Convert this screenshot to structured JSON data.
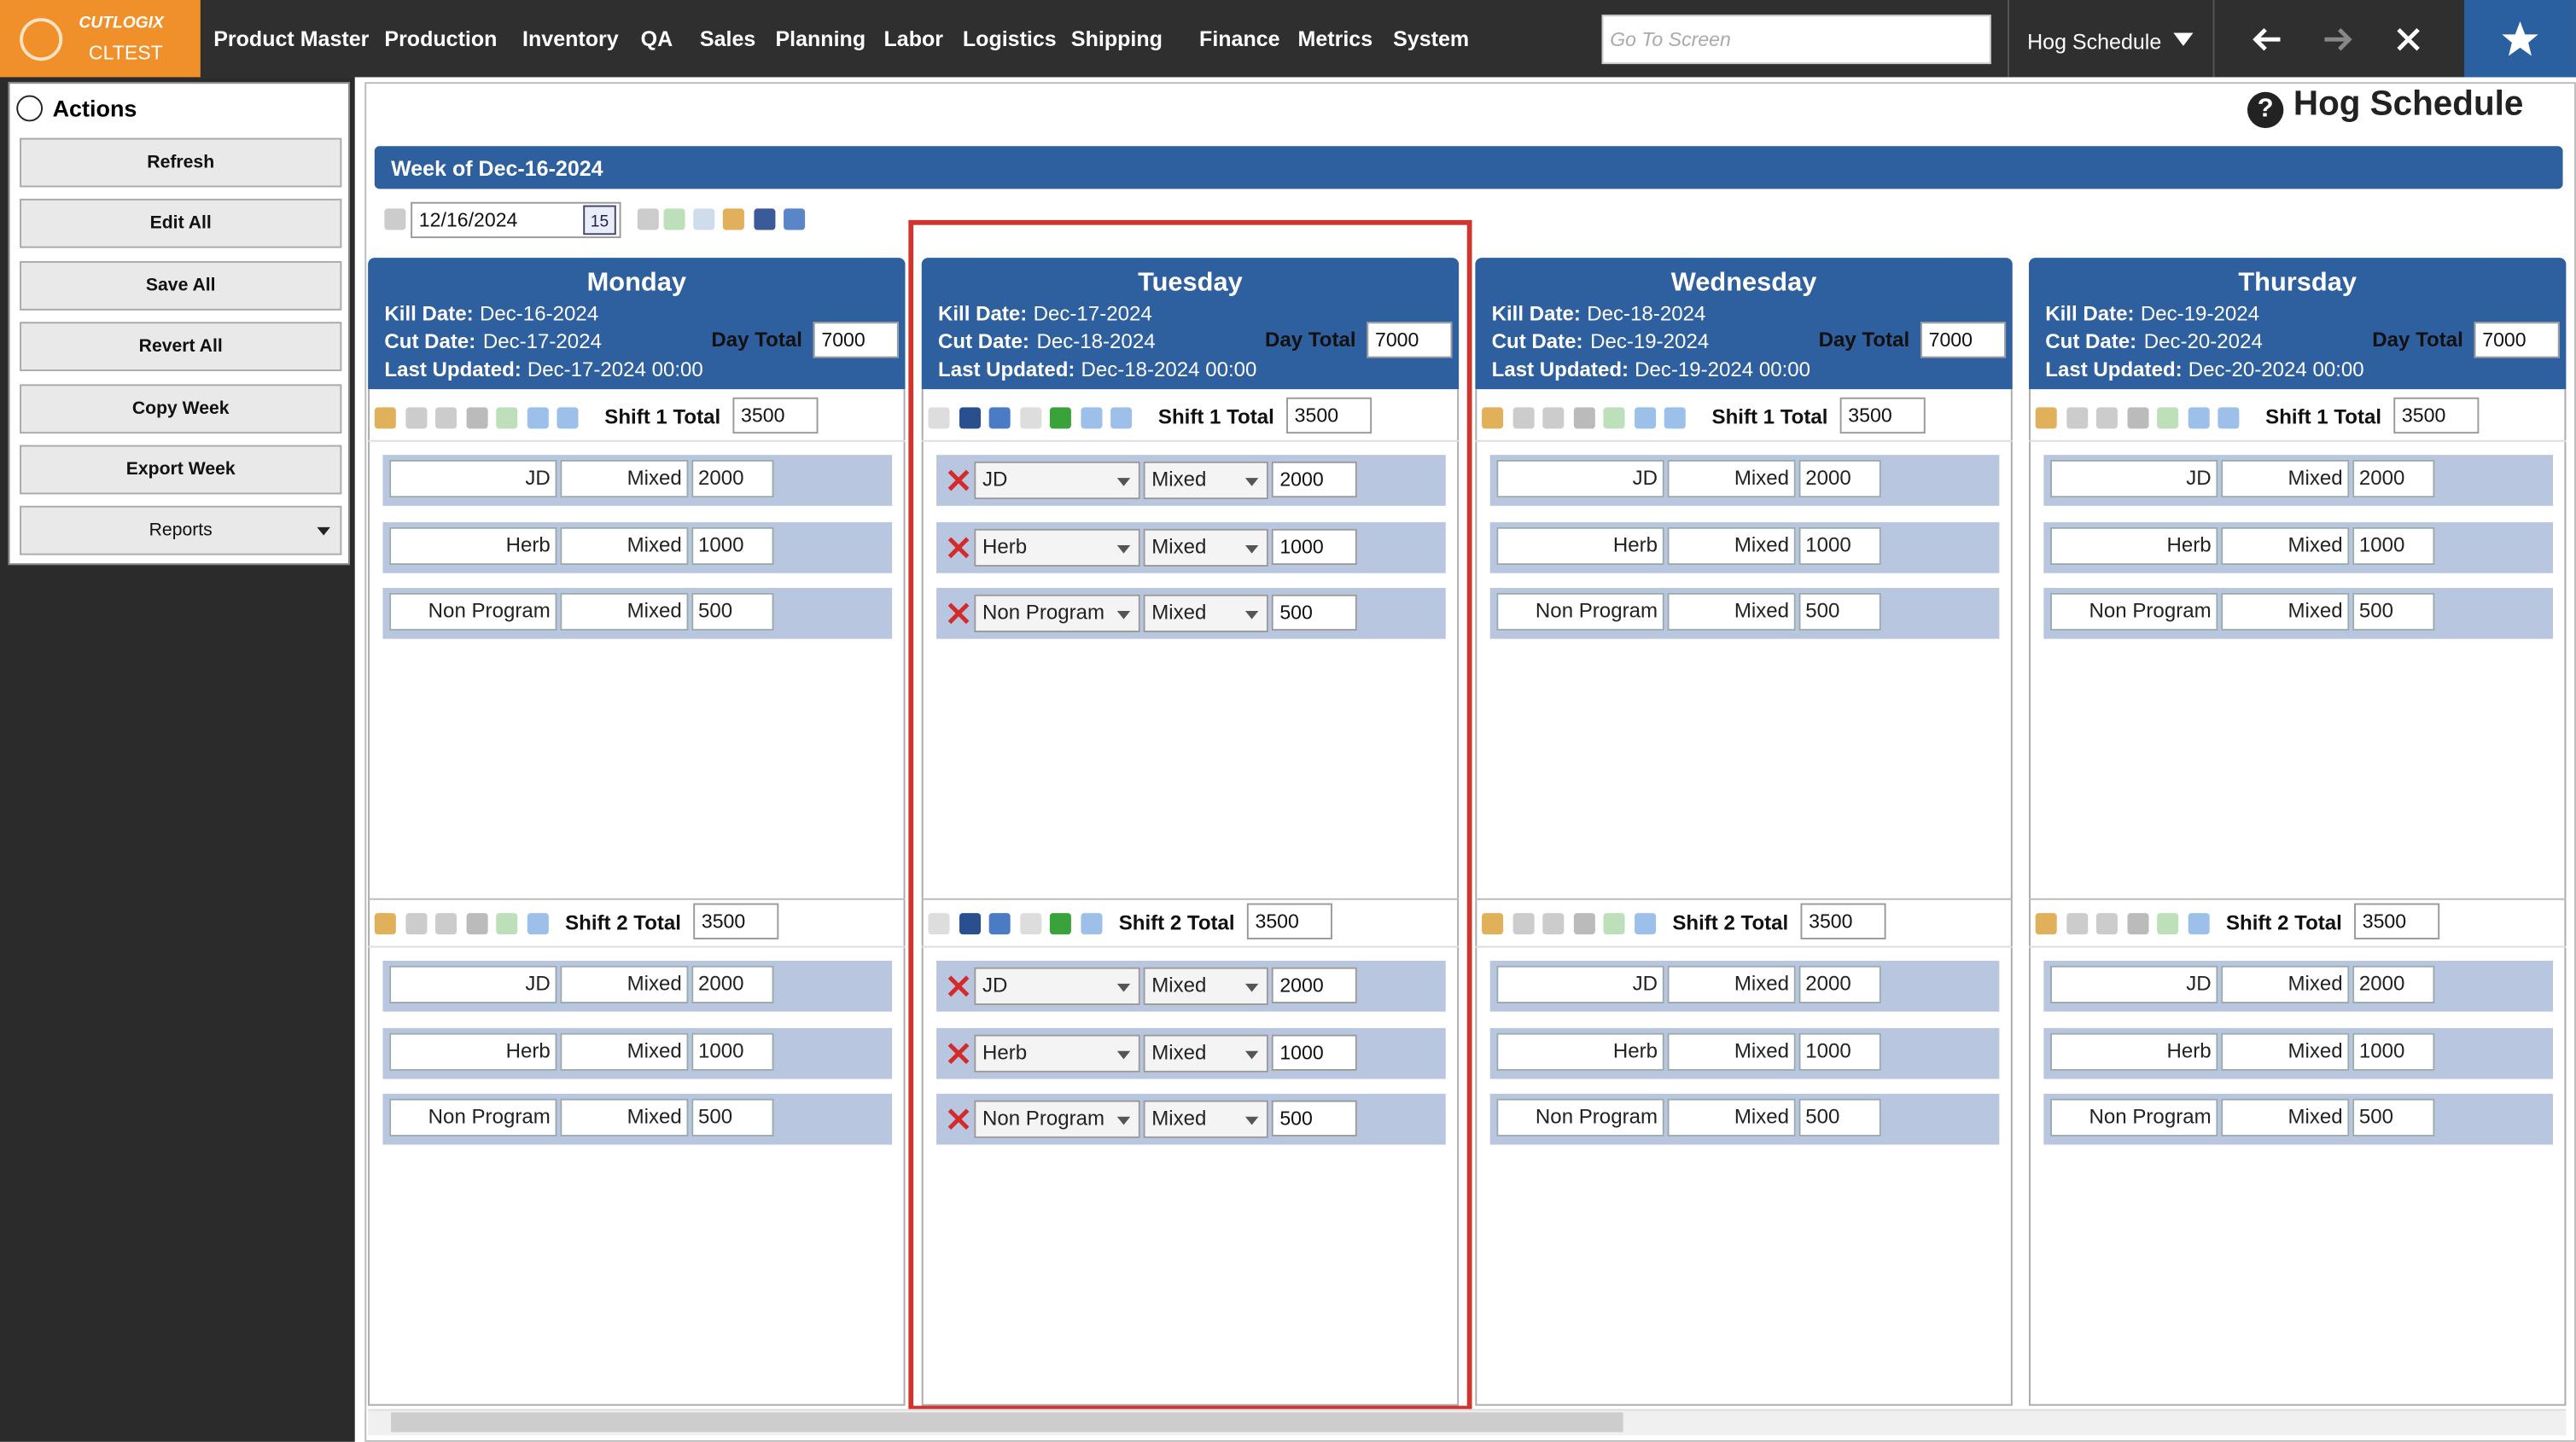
{
  "nav": {
    "logo_brand": "CUTLOGIX",
    "logo_env": "CLTEST",
    "menu": [
      "Product Master",
      "Production",
      "Inventory",
      "QA",
      "Sales",
      "Planning",
      "Labor",
      "Logistics",
      "Shipping",
      "Finance",
      "Metrics",
      "System"
    ],
    "search_placeholder": "Go To Screen",
    "screen": "Hog Schedule"
  },
  "sidebar": {
    "title": "Actions",
    "buttons": [
      "Refresh",
      "Edit All",
      "Save All",
      "Revert All",
      "Copy Week",
      "Export Week"
    ],
    "reports": "Reports"
  },
  "page": {
    "help": "?",
    "title": "Hog Schedule",
    "week": "Week of Dec-16-2024",
    "date": "12/16/2024",
    "calendar_icon": "15"
  },
  "labels": {
    "kill_date": "Kill Date:",
    "cut_date": "Cut Date:",
    "last_updated": "Last Updated:",
    "day_total": "Day Total"
  },
  "days": [
    {
      "name": "Monday",
      "kill_date": "Dec-16-2024",
      "cut_date": "Dec-17-2024",
      "last_updated": "Dec-17-2024 00:00",
      "day_total": 7000,
      "shifts": [
        {
          "label": "Shift 1 Total",
          "total": 3500,
          "rows": [
            [
              "JD",
              "Mixed",
              2000
            ],
            [
              "Herb",
              "Mixed",
              1000
            ],
            [
              "Non Program",
              "Mixed",
              500
            ]
          ]
        },
        {
          "label": "Shift 2 Total",
          "total": 3500,
          "rows": [
            [
              "JD",
              "Mixed",
              2000
            ],
            [
              "Herb",
              "Mixed",
              1000
            ],
            [
              "Non Program",
              "Mixed",
              500
            ]
          ]
        }
      ]
    },
    {
      "name": "Tuesday",
      "kill_date": "Dec-17-2024",
      "cut_date": "Dec-18-2024",
      "last_updated": "Dec-18-2024 00:00",
      "day_total": 7000,
      "shifts": [
        {
          "label": "Shift 1 Total",
          "total": 3500,
          "rows": [
            [
              "JD",
              "Mixed",
              2000
            ],
            [
              "Herb",
              "Mixed",
              1000
            ],
            [
              "Non Program",
              "Mixed",
              500
            ]
          ]
        },
        {
          "label": "Shift 2 Total",
          "total": 3500,
          "rows": [
            [
              "JD",
              "Mixed",
              2000
            ],
            [
              "Herb",
              "Mixed",
              1000
            ],
            [
              "Non Program",
              "Mixed",
              500
            ]
          ]
        }
      ]
    },
    {
      "name": "Wednesday",
      "kill_date": "Dec-18-2024",
      "cut_date": "Dec-19-2024",
      "last_updated": "Dec-19-2024 00:00",
      "day_total": 7000,
      "shifts": [
        {
          "label": "Shift 1 Total",
          "total": 3500,
          "rows": [
            [
              "JD",
              "Mixed",
              2000
            ],
            [
              "Herb",
              "Mixed",
              1000
            ],
            [
              "Non Program",
              "Mixed",
              500
            ]
          ]
        },
        {
          "label": "Shift 2 Total",
          "total": 3500,
          "rows": [
            [
              "JD",
              "Mixed",
              2000
            ],
            [
              "Herb",
              "Mixed",
              1000
            ],
            [
              "Non Program",
              "Mixed",
              500
            ]
          ]
        }
      ]
    },
    {
      "name": "Thursday",
      "kill_date": "Dec-19-2024",
      "cut_date": "Dec-20-2024",
      "last_updated": "Dec-20-2024 00:00",
      "day_total": 7000,
      "shifts": [
        {
          "label": "Shift 1 Total",
          "total": 3500,
          "rows": [
            [
              "JD",
              "Mixed",
              2000
            ],
            [
              "Herb",
              "Mixed",
              1000
            ],
            [
              "Non Program",
              "Mixed",
              500
            ]
          ]
        },
        {
          "label": "Shift 2 Total",
          "total": 3500,
          "rows": [
            [
              "JD",
              "Mixed",
              2000
            ],
            [
              "Herb",
              "Mixed",
              1000
            ],
            [
              "Non Program",
              "Mixed",
              500
            ]
          ]
        }
      ]
    }
  ]
}
